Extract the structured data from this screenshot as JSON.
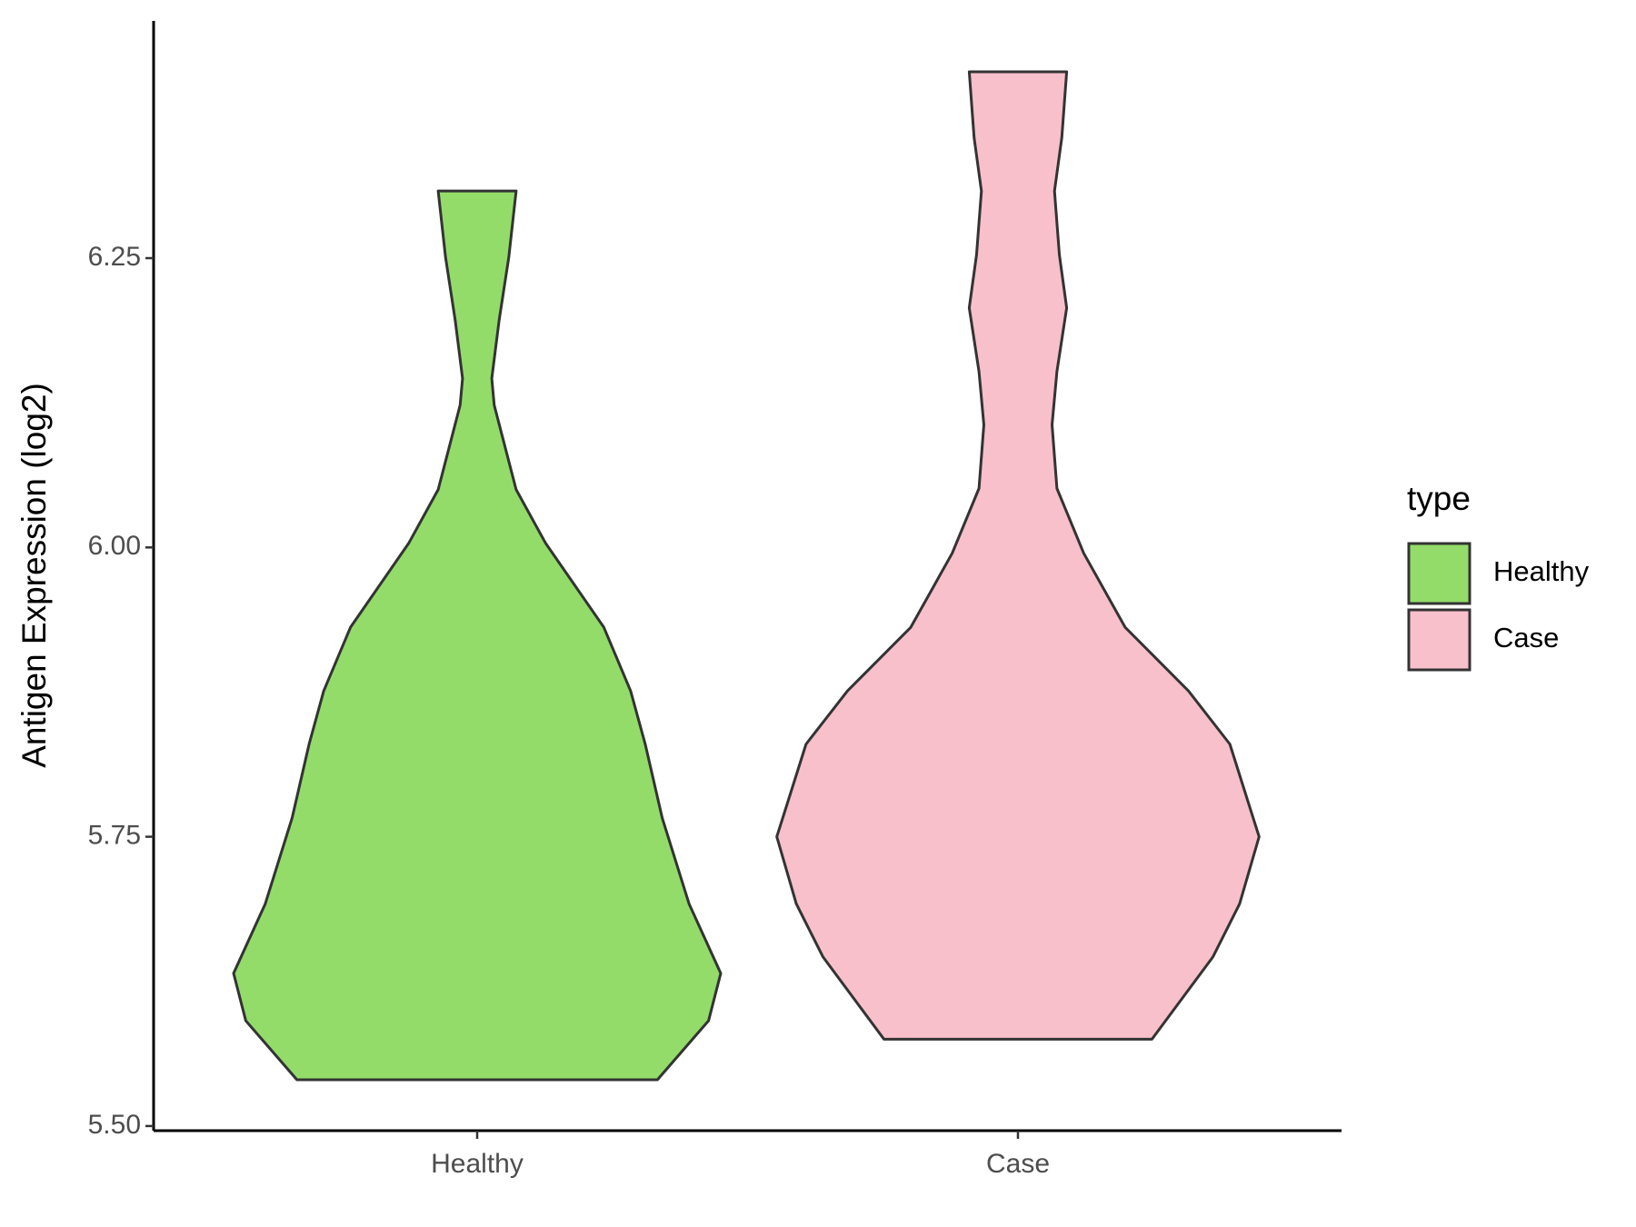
{
  "chart_data": {
    "type": "violin",
    "y_label": "Antigen Expression (log2)",
    "legend_title": "type",
    "categories": [
      "Healthy",
      "Case"
    ],
    "ylim": [
      5.496,
      6.455
    ],
    "yticks": [
      {
        "value": 5.5,
        "label": "5.50"
      },
      {
        "value": 5.75,
        "label": "5.75"
      },
      {
        "value": 6.0,
        "label": "6.00"
      },
      {
        "value": 6.25,
        "label": "6.25"
      }
    ],
    "legend_position": "right",
    "series": [
      {
        "name": "Healthy",
        "color": "#93dc6a",
        "y": [
          5.54,
          5.591,
          5.632,
          5.692,
          5.766,
          5.83,
          5.876,
          5.931,
          6.004,
          6.05,
          6.123,
          6.146,
          6.196,
          6.251,
          6.308
        ],
        "density": [
          0.74,
          0.95,
          1.0,
          0.87,
          0.76,
          0.69,
          0.63,
          0.52,
          0.28,
          0.16,
          0.07,
          0.06,
          0.09,
          0.13,
          0.16
        ]
      },
      {
        "name": "Case",
        "color": "#f8c0cb",
        "y": [
          5.575,
          5.646,
          5.692,
          5.75,
          5.83,
          5.876,
          5.931,
          5.995,
          6.051,
          6.106,
          6.152,
          6.207,
          6.253,
          6.308,
          6.354,
          6.411
        ],
        "density": [
          0.55,
          0.8,
          0.91,
          0.99,
          0.87,
          0.7,
          0.44,
          0.27,
          0.16,
          0.14,
          0.16,
          0.2,
          0.17,
          0.15,
          0.18,
          0.2
        ]
      }
    ]
  }
}
